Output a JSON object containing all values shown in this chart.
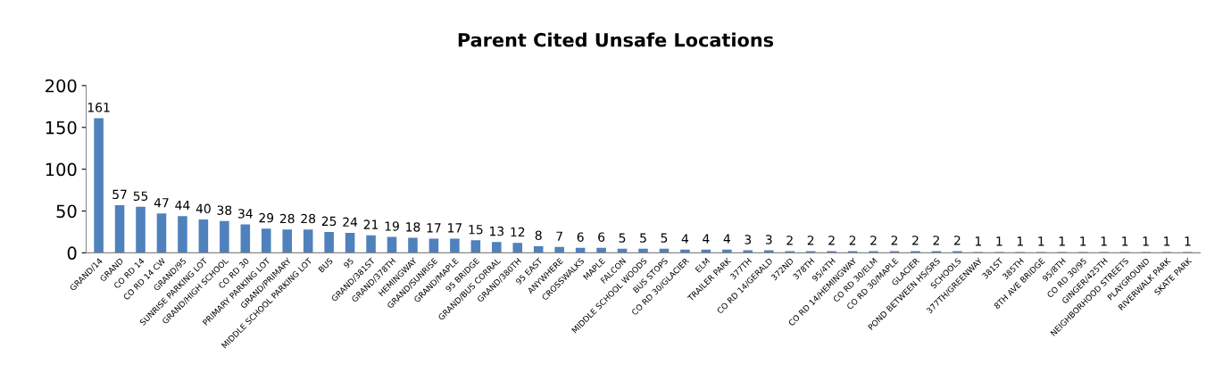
{
  "chart_data": {
    "type": "bar",
    "title": "Parent Cited Unsafe Locations",
    "categories": [
      "GRAND/14",
      "GRAND",
      "CO RD 14",
      "CO RD 14 CW",
      "GRAND/95",
      "SUNRISE PARKING LOT",
      "GRAND/HIGH SCHOOL",
      "CO RD 30",
      "PRIMARY PARKING LOT",
      "GRAND/PRIMARY",
      "MIDDLE SCHOOL PARKING LOT",
      "BUS",
      "95",
      "GRAND/381ST",
      "GRAND/378TH",
      "HEMINGWAY",
      "GRAND/SUNRISE",
      "GRAND/MAPLE",
      "95 BRIDGE",
      "GRAND/BUS CORRAL",
      "GRAND/380TH",
      "95 EAST",
      "ANYWHERE",
      "CROSSWALKS",
      "MAPLE",
      "FALCON",
      "MIDDLE SCHOOL WOODS",
      "BUS STOPS",
      "CO RD 30/GLACIER",
      "ELM",
      "TRAILER PARK",
      "377TH",
      "CO RD 14/GERALD",
      "372ND",
      "378TH",
      "95/4TH",
      "CO RD 14/HEMINGWAY",
      "CO RD 30/ELM",
      "CO RD 30/MAPLE",
      "GLACIER",
      "POND BETWEEN HS/SRS",
      "SCHOOLS",
      "377TH/GREENWAY",
      "381ST",
      "385TH",
      "8TH AVE BRIDGE",
      "95/8TH",
      "CO RD 30/95",
      "GINGER/425TH",
      "NEIGHBORHOOD STREETS",
      "PLAYGROUND",
      "RIVERWALK PARK",
      "SKATE PARK"
    ],
    "values": [
      161,
      57,
      55,
      47,
      44,
      40,
      38,
      34,
      29,
      28,
      28,
      25,
      24,
      21,
      19,
      18,
      17,
      17,
      15,
      13,
      12,
      8,
      7,
      6,
      6,
      5,
      5,
      5,
      4,
      4,
      4,
      3,
      3,
      2,
      2,
      2,
      2,
      2,
      2,
      2,
      2,
      2,
      1,
      1,
      1,
      1,
      1,
      1,
      1,
      1,
      1,
      1,
      1
    ],
    "color": "#4f81bd",
    "ylim": [
      0,
      200
    ],
    "yticks": [
      0,
      50,
      100,
      150,
      200
    ],
    "data_labels": true,
    "grid": false,
    "legend": false
  }
}
